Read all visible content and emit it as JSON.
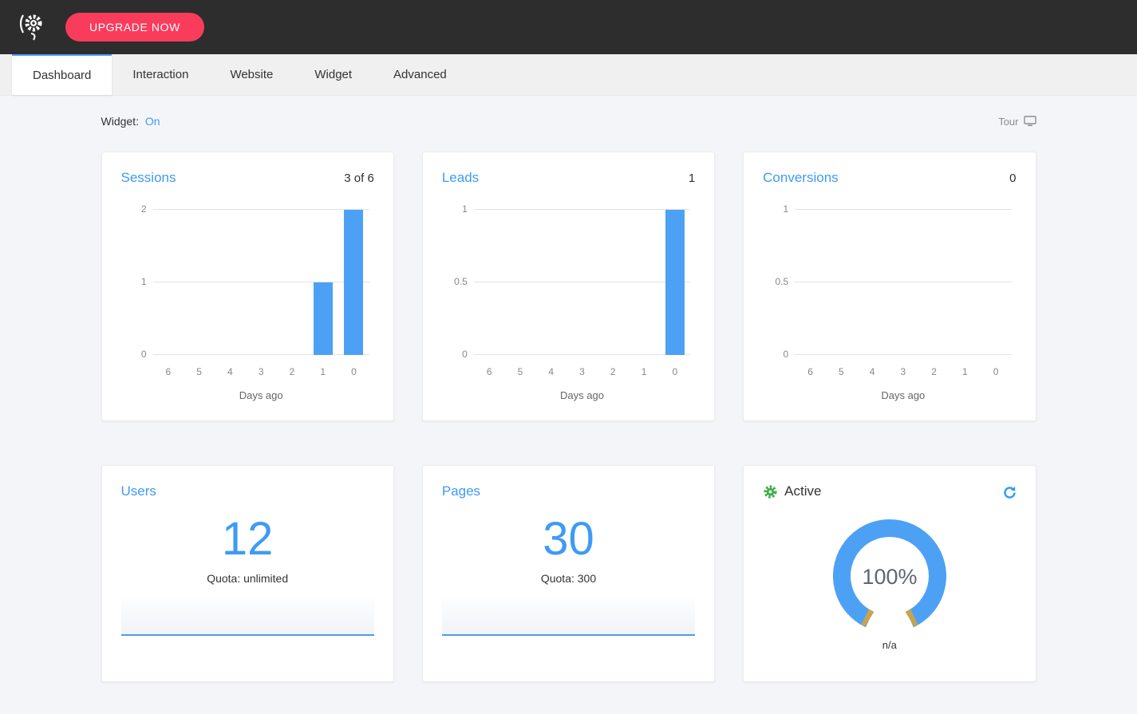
{
  "topbar": {
    "upgrade_label": "UPGRADE NOW"
  },
  "tabs": [
    {
      "label": "Dashboard",
      "active": true
    },
    {
      "label": "Interaction",
      "active": false
    },
    {
      "label": "Website",
      "active": false
    },
    {
      "label": "Widget",
      "active": false
    },
    {
      "label": "Advanced",
      "active": false
    }
  ],
  "header": {
    "widget_label": "Widget:",
    "widget_state": "On",
    "tour_label": "Tour"
  },
  "chart_data": [
    {
      "type": "bar",
      "title": "Sessions",
      "summary": "3 of 6",
      "categories": [
        "6",
        "5",
        "4",
        "3",
        "2",
        "1",
        "0"
      ],
      "values": [
        0,
        0,
        0,
        0,
        0,
        1,
        2
      ],
      "yticks": [
        0,
        1,
        2
      ],
      "ylim": [
        0,
        2
      ],
      "xlabel": "Days ago",
      "bar_color": "#4da1f5",
      "grid": true,
      "legend": "none"
    },
    {
      "type": "bar",
      "title": "Leads",
      "summary": "1",
      "categories": [
        "6",
        "5",
        "4",
        "3",
        "2",
        "1",
        "0"
      ],
      "values": [
        0,
        0,
        0,
        0,
        0,
        0,
        1
      ],
      "yticks": [
        0,
        0.5,
        1
      ],
      "ylim": [
        0,
        1
      ],
      "xlabel": "Days ago",
      "bar_color": "#4da1f5",
      "grid": true,
      "legend": "none"
    },
    {
      "type": "bar",
      "title": "Conversions",
      "summary": "0",
      "categories": [
        "6",
        "5",
        "4",
        "3",
        "2",
        "1",
        "0"
      ],
      "values": [
        0,
        0,
        0,
        0,
        0,
        0,
        0
      ],
      "yticks": [
        0,
        0.5,
        1
      ],
      "ylim": [
        0,
        1
      ],
      "xlabel": "Days ago",
      "bar_color": "#4da1f5",
      "grid": true,
      "legend": "none"
    }
  ],
  "stats": [
    {
      "title": "Users",
      "value": "12",
      "quota": "Quota: unlimited"
    },
    {
      "title": "Pages",
      "value": "30",
      "quota": "Quota: 300"
    }
  ],
  "status": {
    "title": "Active",
    "gauge_value": "100%",
    "gauge_label": "n/a",
    "gauge_percent": 100
  },
  "colors": {
    "accent_blue": "#3e9bf4",
    "bar_blue": "#4da1f5",
    "upgrade_pink": "#fa3c5c",
    "active_green": "#3fae49",
    "topbar_dark": "#2d2d2d",
    "gauge_tip_gold": "#c9a24e"
  }
}
